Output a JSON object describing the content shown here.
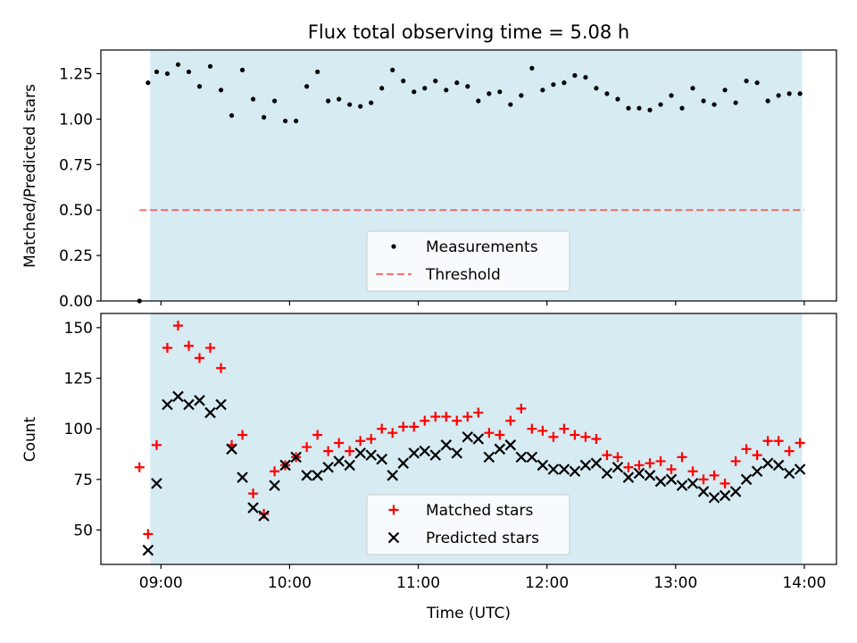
{
  "title": "Flux total observing time = 5.08 h",
  "colors": {
    "shade": "#add8e6",
    "threshold": "#ff0000",
    "measurements": "#000000",
    "matched": "#ff0000",
    "predicted": "#000000"
  },
  "chart_data": [
    {
      "type": "scatter",
      "ylabel": "Matched/Predicted stars",
      "xlim": [
        "08:32",
        "14:15"
      ],
      "ylim": [
        0,
        1.38
      ],
      "yticks": [
        0,
        0.25,
        0.5,
        0.75,
        1.0,
        1.25
      ],
      "ytick_labels": [
        "0.00",
        "0.25",
        "0.50",
        "0.75",
        "1.00",
        "1.25"
      ],
      "shaded_span": [
        "08:55",
        "13:59"
      ],
      "grid": false,
      "legend_position": "lower center",
      "threshold": {
        "name": "Threshold",
        "y": 0.5,
        "x_range": [
          "08:50",
          "14:00"
        ],
        "style": "dashed"
      },
      "series": [
        {
          "name": "Measurements",
          "marker": "dot",
          "x": [
            "08:50",
            "08:54",
            "08:58",
            "09:03",
            "09:08",
            "09:13",
            "09:18",
            "09:23",
            "09:28",
            "09:33",
            "09:38",
            "09:43",
            "09:48",
            "09:53",
            "09:58",
            "10:03",
            "10:08",
            "10:13",
            "10:18",
            "10:23",
            "10:28",
            "10:33",
            "10:38",
            "10:43",
            "10:48",
            "10:53",
            "10:58",
            "11:03",
            "11:08",
            "11:13",
            "11:18",
            "11:23",
            "11:28",
            "11:33",
            "11:38",
            "11:43",
            "11:48",
            "11:53",
            "11:58",
            "12:03",
            "12:08",
            "12:13",
            "12:18",
            "12:23",
            "12:28",
            "12:33",
            "12:38",
            "12:43",
            "12:48",
            "12:53",
            "12:58",
            "13:03",
            "13:08",
            "13:13",
            "13:18",
            "13:23",
            "13:28",
            "13:33",
            "13:38",
            "13:43",
            "13:48",
            "13:53",
            "13:58"
          ],
          "y": [
            0.0,
            1.2,
            1.26,
            1.25,
            1.3,
            1.26,
            1.18,
            1.29,
            1.16,
            1.02,
            1.27,
            1.11,
            1.01,
            1.1,
            0.99,
            0.99,
            1.18,
            1.26,
            1.1,
            1.11,
            1.08,
            1.07,
            1.09,
            1.17,
            1.27,
            1.21,
            1.15,
            1.17,
            1.21,
            1.16,
            1.2,
            1.18,
            1.1,
            1.14,
            1.15,
            1.08,
            1.13,
            1.28,
            1.16,
            1.19,
            1.2,
            1.24,
            1.23,
            1.17,
            1.14,
            1.11,
            1.06,
            1.06,
            1.05,
            1.08,
            1.13,
            1.06,
            1.17,
            1.1,
            1.08,
            1.16,
            1.09,
            1.21,
            1.2,
            1.1,
            1.13,
            1.14,
            1.14
          ]
        }
      ]
    },
    {
      "type": "scatter",
      "xlabel": "Time (UTC)",
      "ylabel": "Count",
      "xlim": [
        "08:32",
        "14:15"
      ],
      "ylim": [
        33,
        157
      ],
      "yticks": [
        50,
        75,
        100,
        125,
        150
      ],
      "ytick_labels": [
        "50",
        "75",
        "100",
        "125",
        "150"
      ],
      "xticks": [
        "09:00",
        "10:00",
        "11:00",
        "12:00",
        "13:00",
        "14:00"
      ],
      "xtick_labels": [
        "09:00",
        "10:00",
        "11:00",
        "12:00",
        "13:00",
        "14:00"
      ],
      "shaded_span": [
        "08:55",
        "13:59"
      ],
      "grid": false,
      "legend_position": "lower center",
      "series": [
        {
          "name": "Matched stars",
          "marker": "plus",
          "x": [
            "08:50",
            "08:54",
            "08:58",
            "09:03",
            "09:08",
            "09:13",
            "09:18",
            "09:23",
            "09:28",
            "09:33",
            "09:38",
            "09:43",
            "09:48",
            "09:53",
            "09:58",
            "10:03",
            "10:08",
            "10:13",
            "10:18",
            "10:23",
            "10:28",
            "10:33",
            "10:38",
            "10:43",
            "10:48",
            "10:53",
            "10:58",
            "11:03",
            "11:08",
            "11:13",
            "11:18",
            "11:23",
            "11:28",
            "11:33",
            "11:38",
            "11:43",
            "11:48",
            "11:53",
            "11:58",
            "12:03",
            "12:08",
            "12:13",
            "12:18",
            "12:23",
            "12:28",
            "12:33",
            "12:38",
            "12:43",
            "12:48",
            "12:53",
            "12:58",
            "13:03",
            "13:08",
            "13:13",
            "13:18",
            "13:23",
            "13:28",
            "13:33",
            "13:38",
            "13:43",
            "13:48",
            "13:53",
            "13:58"
          ],
          "y": [
            81,
            48,
            92,
            140,
            151,
            141,
            135,
            140,
            130,
            92,
            97,
            68,
            58,
            79,
            82,
            86,
            91,
            97,
            89,
            93,
            89,
            94,
            95,
            100,
            98,
            101,
            101,
            104,
            106,
            106,
            104,
            106,
            108,
            98,
            97,
            104,
            110,
            100,
            99,
            96,
            100,
            97,
            96,
            95,
            87,
            86,
            81,
            82,
            83,
            84,
            80,
            86,
            79,
            75,
            77,
            73,
            84,
            90,
            87,
            94,
            94,
            89,
            93
          ]
        },
        {
          "name": "Predicted stars",
          "marker": "x",
          "x": [
            "08:54",
            "08:58",
            "09:03",
            "09:08",
            "09:13",
            "09:18",
            "09:23",
            "09:28",
            "09:33",
            "09:38",
            "09:43",
            "09:48",
            "09:53",
            "09:58",
            "10:03",
            "10:08",
            "10:13",
            "10:18",
            "10:23",
            "10:28",
            "10:33",
            "10:38",
            "10:43",
            "10:48",
            "10:53",
            "10:58",
            "11:03",
            "11:08",
            "11:13",
            "11:18",
            "11:23",
            "11:28",
            "11:33",
            "11:38",
            "11:43",
            "11:48",
            "11:53",
            "11:58",
            "12:03",
            "12:08",
            "12:13",
            "12:18",
            "12:23",
            "12:28",
            "12:33",
            "12:38",
            "12:43",
            "12:48",
            "12:53",
            "12:58",
            "13:03",
            "13:08",
            "13:13",
            "13:18",
            "13:23",
            "13:28",
            "13:33",
            "13:38",
            "13:43",
            "13:48",
            "13:53",
            "13:58"
          ],
          "y": [
            40,
            73,
            112,
            116,
            112,
            114,
            108,
            112,
            90,
            76,
            61,
            57,
            72,
            82,
            86,
            77,
            77,
            81,
            84,
            82,
            88,
            87,
            85,
            77,
            83,
            88,
            89,
            87,
            92,
            88,
            96,
            95,
            86,
            90,
            92,
            86,
            86,
            82,
            80,
            80,
            79,
            82,
            83,
            78,
            81,
            76,
            78,
            77,
            74,
            75,
            72,
            73,
            69,
            66,
            67,
            69,
            75,
            79,
            83,
            82,
            78,
            80
          ]
        }
      ]
    }
  ]
}
